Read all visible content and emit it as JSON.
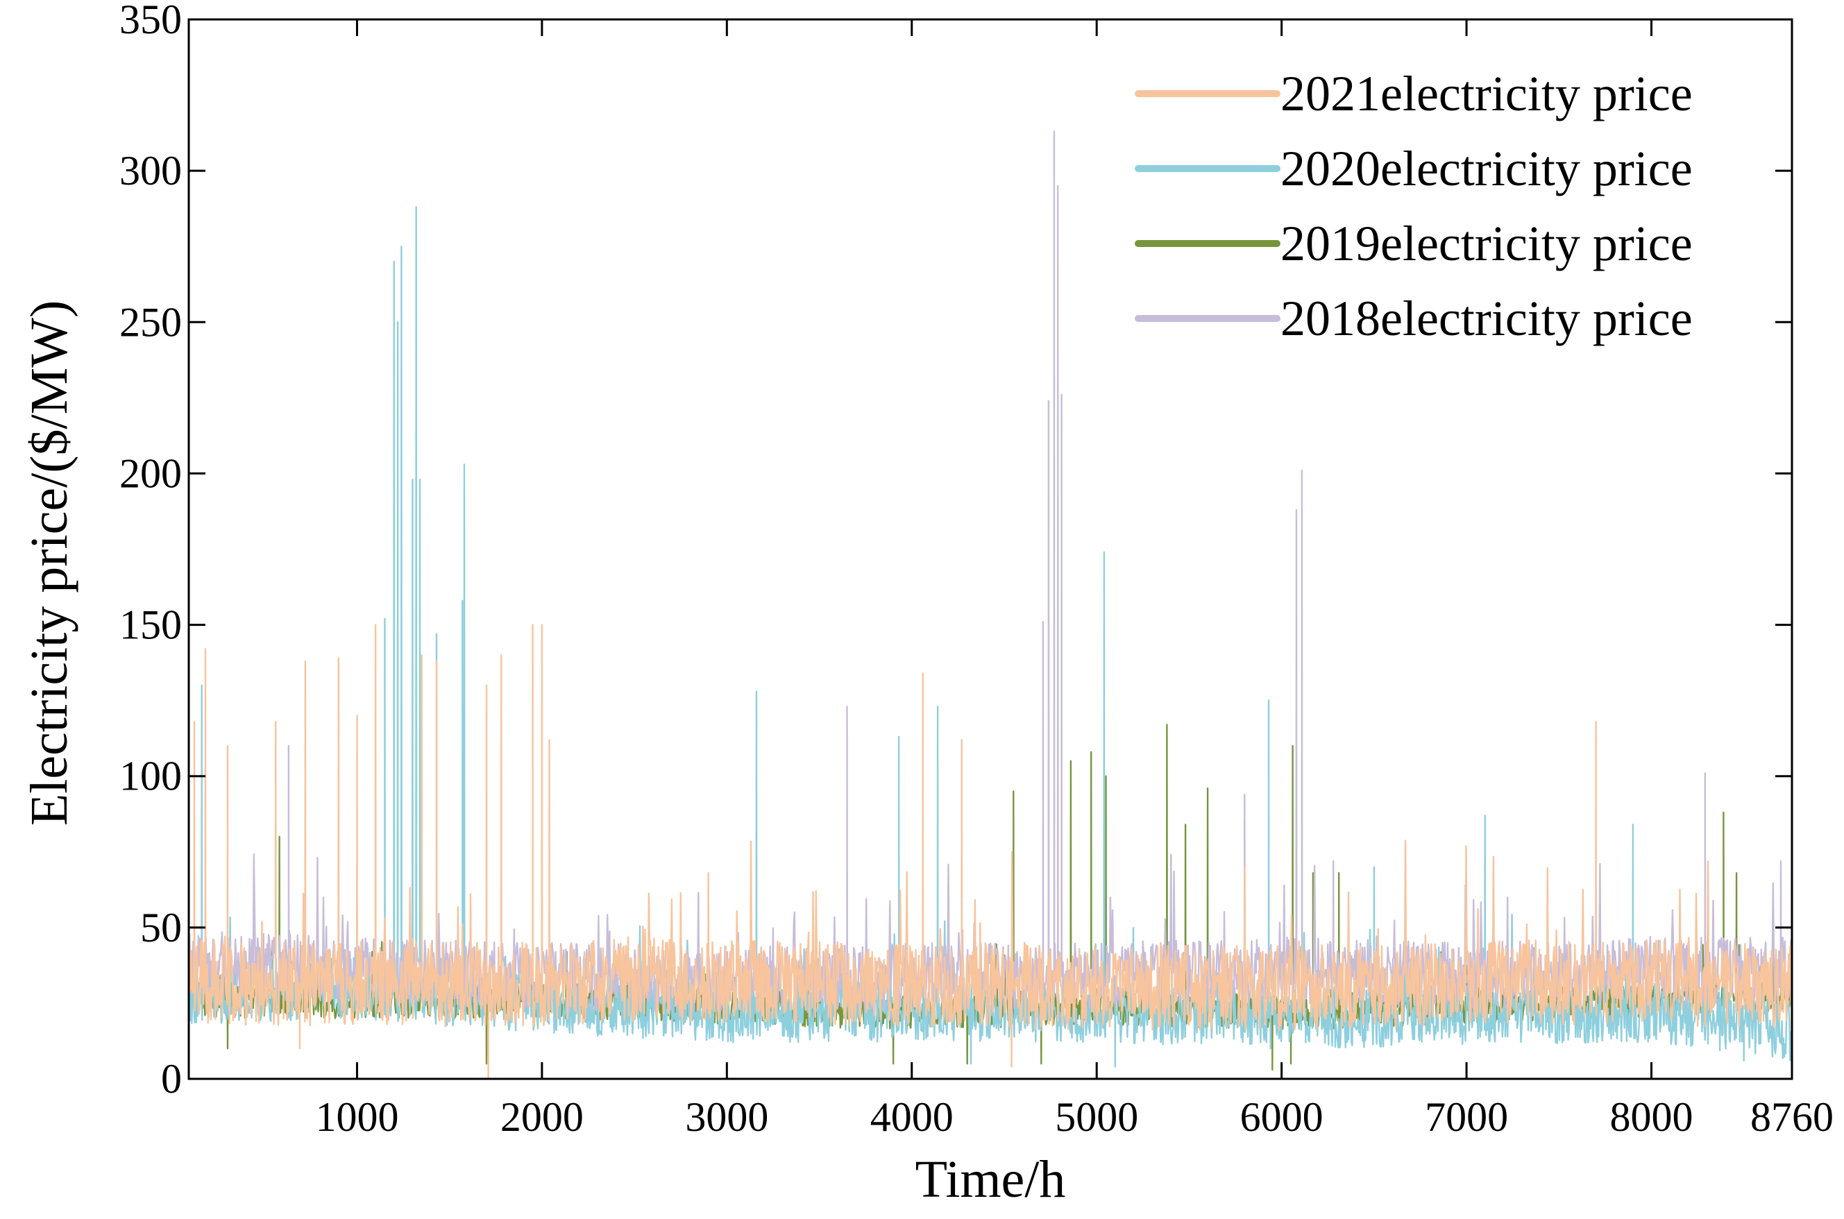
{
  "chart_data": {
    "type": "line",
    "title": "",
    "xlabel": "Time/h",
    "ylabel": "Electricity price/($/MW)",
    "xlim": [
      90,
      8760
    ],
    "ylim": [
      0,
      350
    ],
    "xticks": [
      1000,
      2000,
      3000,
      4000,
      5000,
      6000,
      7000,
      8000,
      8760
    ],
    "yticks": [
      0,
      50,
      100,
      150,
      200,
      250,
      300,
      350
    ],
    "xtick_labels": [
      "1000",
      "2000",
      "3000",
      "4000",
      "5000",
      "6000",
      "7000",
      "8000",
      "8760"
    ],
    "ytick_labels": [
      "0",
      "50",
      "100",
      "150",
      "200",
      "250",
      "300",
      "350"
    ],
    "grid": false,
    "legend_position": "top-right",
    "series": [
      {
        "name": "2021electricity price",
        "color": "#F8C49C",
        "base": [
          [
            90,
            32
          ],
          [
            2000,
            31
          ],
          [
            2500,
            33
          ],
          [
            4000,
            31
          ],
          [
            5000,
            30
          ],
          [
            6000,
            30
          ],
          [
            7000,
            32
          ],
          [
            8000,
            32
          ],
          [
            8760,
            30
          ]
        ],
        "noise": 14,
        "seed": 21,
        "peaks": [
          [
            120,
            118
          ],
          [
            180,
            142
          ],
          [
            300,
            110
          ],
          [
            560,
            118
          ],
          [
            720,
            138
          ],
          [
            900,
            139
          ],
          [
            1000,
            120
          ],
          [
            1100,
            150
          ],
          [
            1350,
            140
          ],
          [
            1430,
            138
          ],
          [
            1700,
            130
          ],
          [
            1780,
            140
          ],
          [
            1950,
            150
          ],
          [
            2000,
            150
          ],
          [
            2040,
            112
          ],
          [
            2900,
            68
          ],
          [
            4060,
            134
          ],
          [
            4270,
            112
          ],
          [
            4530,
            40
          ],
          [
            5800,
            70
          ],
          [
            7700,
            118
          ],
          [
            8300,
            40
          ]
        ],
        "dips": [
          [
            690,
            10
          ],
          [
            1710,
            0
          ],
          [
            4540,
            4
          ]
        ]
      },
      {
        "name": "2020electricity price",
        "color": "#8ECFDE",
        "base": [
          [
            90,
            28
          ],
          [
            1000,
            30
          ],
          [
            2000,
            25
          ],
          [
            3000,
            22
          ],
          [
            4000,
            22
          ],
          [
            5000,
            22
          ],
          [
            6000,
            20
          ],
          [
            7000,
            21
          ],
          [
            8000,
            22
          ],
          [
            8760,
            16
          ]
        ],
        "noise": 10,
        "seed": 20,
        "peaks": [
          [
            160,
            130
          ],
          [
            1150,
            152
          ],
          [
            1200,
            270
          ],
          [
            1220,
            250
          ],
          [
            1240,
            275
          ],
          [
            1300,
            198
          ],
          [
            1320,
            288
          ],
          [
            1340,
            198
          ],
          [
            1430,
            147
          ],
          [
            1580,
            203
          ],
          [
            1570,
            158
          ],
          [
            3160,
            128
          ],
          [
            3930,
            113
          ],
          [
            4140,
            123
          ],
          [
            5040,
            174
          ],
          [
            5930,
            125
          ],
          [
            6500,
            70
          ],
          [
            7100,
            87
          ],
          [
            7900,
            84
          ]
        ],
        "dips": [
          [
            4320,
            5
          ],
          [
            5100,
            4
          ],
          [
            5940,
            10
          ],
          [
            6130,
            12
          ],
          [
            8500,
            6
          ]
        ]
      },
      {
        "name": "2019electricity price",
        "color": "#76963C",
        "base": [
          [
            90,
            26
          ],
          [
            1000,
            26
          ],
          [
            2000,
            26
          ],
          [
            3000,
            24
          ],
          [
            4000,
            22
          ],
          [
            5000,
            24
          ],
          [
            6000,
            22
          ],
          [
            7000,
            24
          ],
          [
            8000,
            26
          ],
          [
            8760,
            28
          ]
        ],
        "noise": 6,
        "seed": 19,
        "peaks": [
          [
            580,
            80
          ],
          [
            4550,
            95
          ],
          [
            4860,
            105
          ],
          [
            4970,
            108
          ],
          [
            5050,
            100
          ],
          [
            5380,
            117
          ],
          [
            5480,
            84
          ],
          [
            5600,
            96
          ],
          [
            5800,
            85
          ],
          [
            6060,
            110
          ],
          [
            6170,
            68
          ],
          [
            6310,
            68
          ],
          [
            8390,
            88
          ],
          [
            8460,
            68
          ]
        ],
        "dips": [
          [
            300,
            10
          ],
          [
            1700,
            5
          ],
          [
            3900,
            5
          ],
          [
            4300,
            5
          ],
          [
            4700,
            5
          ],
          [
            5950,
            3
          ],
          [
            6050,
            5
          ]
        ]
      },
      {
        "name": "2018electricity price",
        "color": "#C8BDD9",
        "base": [
          [
            90,
            38
          ],
          [
            1000,
            36
          ],
          [
            2000,
            34
          ],
          [
            3000,
            33
          ],
          [
            4000,
            34
          ],
          [
            5000,
            34
          ],
          [
            6000,
            36
          ],
          [
            7000,
            34
          ],
          [
            8000,
            36
          ],
          [
            8760,
            36
          ]
        ],
        "noise": 11,
        "seed": 18,
        "peaks": [
          [
            630,
            110
          ],
          [
            3650,
            123
          ],
          [
            4710,
            151
          ],
          [
            4740,
            224
          ],
          [
            4770,
            313
          ],
          [
            4790,
            295
          ],
          [
            4810,
            226
          ],
          [
            5800,
            94
          ],
          [
            6080,
            188
          ],
          [
            6110,
            201
          ],
          [
            6280,
            72
          ],
          [
            8290,
            101
          ],
          [
            8700,
            72
          ]
        ],
        "dips": []
      }
    ]
  }
}
